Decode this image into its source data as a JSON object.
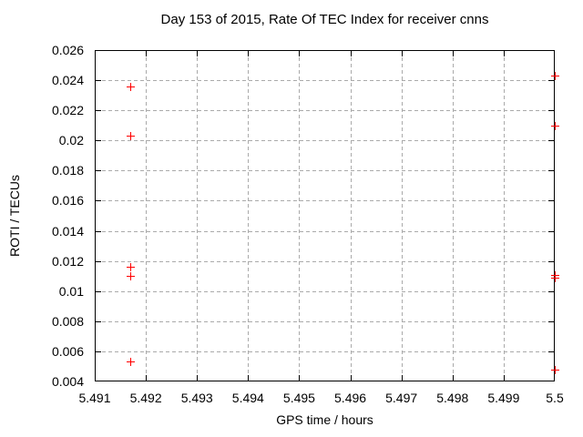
{
  "chart_data": {
    "type": "scatter",
    "title": "Day 153 of 2015, Rate Of TEC Index for receiver cnns",
    "xlabel": "GPS time / hours",
    "ylabel": "ROTI / TECUs",
    "xlim": [
      5.491,
      5.5
    ],
    "ylim": [
      0.004,
      0.026
    ],
    "grid": true,
    "legend": "none",
    "xticks": {
      "values": [
        5.491,
        5.492,
        5.493,
        5.494,
        5.495,
        5.496,
        5.497,
        5.498,
        5.499,
        5.5
      ],
      "labels": [
        "5.491",
        "5.492",
        "5.493",
        "5.494",
        "5.495",
        "5.496",
        "5.497",
        "5.498",
        "5.499",
        "5.5"
      ]
    },
    "yticks": {
      "values": [
        0.004,
        0.006,
        0.008,
        0.01,
        0.012,
        0.014,
        0.016,
        0.018,
        0.02,
        0.022,
        0.024,
        0.026
      ],
      "labels": [
        "0.004",
        "0.006",
        "0.008",
        "0.01",
        "0.012",
        "0.014",
        "0.016",
        "0.018",
        "0.02",
        "0.022",
        "0.024",
        "0.026"
      ]
    },
    "series": [
      {
        "name": "ROTI",
        "marker": "plus",
        "color": "#ff0000",
        "points": [
          [
            5.4917,
            0.0236
          ],
          [
            5.4917,
            0.0203
          ],
          [
            5.4917,
            0.0116
          ],
          [
            5.4917,
            0.011
          ],
          [
            5.4917,
            0.0053
          ],
          [
            5.5,
            0.0243
          ],
          [
            5.5,
            0.021
          ],
          [
            5.5,
            0.0111
          ],
          [
            5.5,
            0.0109
          ],
          [
            5.5,
            0.0048
          ]
        ]
      }
    ]
  },
  "style": {
    "background": "#ffffff",
    "border_color": "#000000",
    "text_color": "#000000",
    "grid_color": "#aaaaaa",
    "marker_color": "#ff0000"
  }
}
